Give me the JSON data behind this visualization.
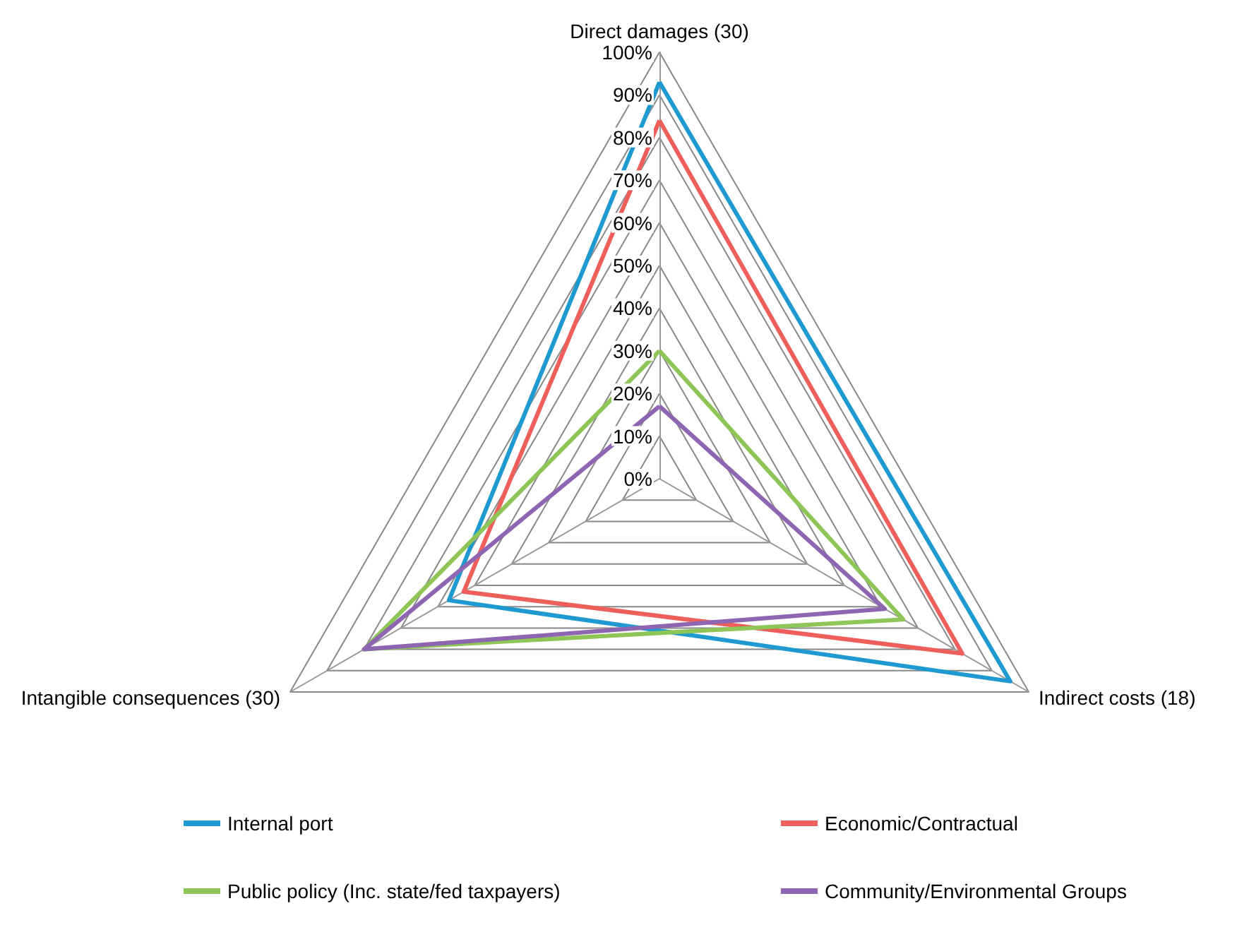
{
  "chart_data": {
    "type": "radar",
    "categories": [
      "Direct damages (30)",
      "Indirect costs (18)",
      "Intangible consequences (30)"
    ],
    "ylim": [
      0,
      100
    ],
    "yticks": [
      {
        "value": 0,
        "label": "0%"
      },
      {
        "value": 10,
        "label": "10%"
      },
      {
        "value": 20,
        "label": "20%"
      },
      {
        "value": 30,
        "label": "30%"
      },
      {
        "value": 40,
        "label": "40%"
      },
      {
        "value": 50,
        "label": "50%"
      },
      {
        "value": 60,
        "label": "60%"
      },
      {
        "value": 70,
        "label": "70%"
      },
      {
        "value": 80,
        "label": "80%"
      },
      {
        "value": 90,
        "label": "90%"
      },
      {
        "value": 100,
        "label": "100%"
      }
    ],
    "series": [
      {
        "name": "Internal port",
        "color": "#1f9ad0",
        "values": [
          93,
          95,
          57
        ]
      },
      {
        "name": "Economic/Contractual",
        "color": "#ee5e5b",
        "values": [
          84,
          82,
          53
        ]
      },
      {
        "name": "Public policy (Inc. state/fed taxpayers)",
        "color": "#8dc657",
        "values": [
          30,
          66,
          80
        ]
      },
      {
        "name": "Community/Environmental Groups",
        "color": "#8e65b0",
        "values": [
          17,
          61,
          80
        ]
      }
    ],
    "grid": true,
    "legend": "bottom"
  }
}
